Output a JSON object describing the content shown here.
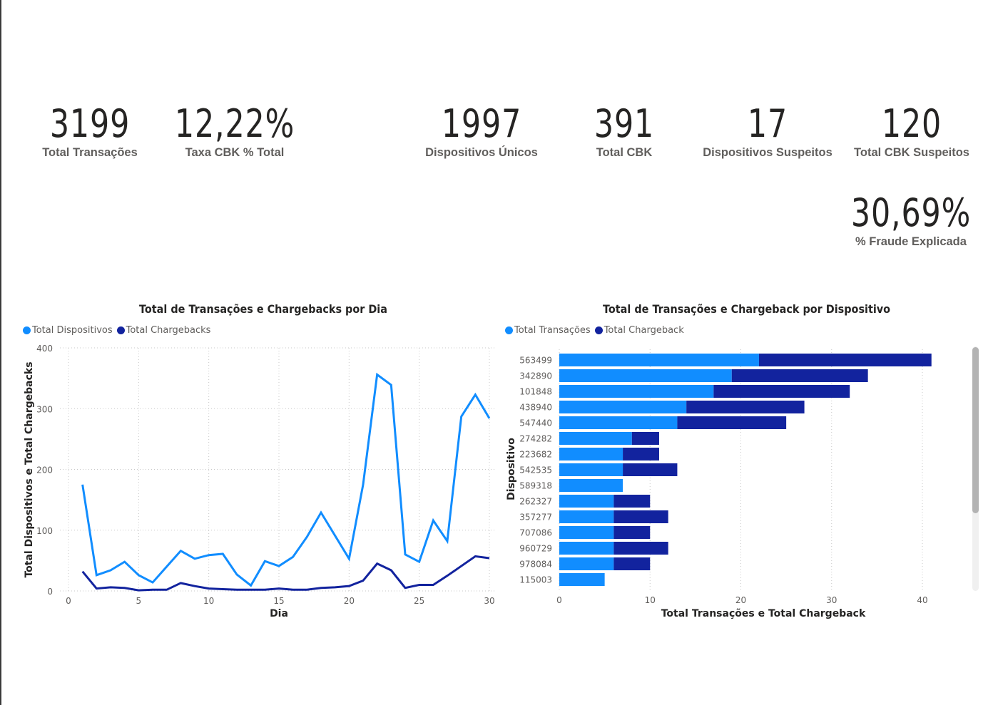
{
  "kpis": [
    {
      "value": "3199",
      "label": "Total Transações"
    },
    {
      "value": "12,22%",
      "label": "Taxa CBK % Total"
    },
    {
      "value": "1997",
      "label": "Dispositivos Únicos"
    },
    {
      "value": "391",
      "label": "Total CBK"
    },
    {
      "value": "17",
      "label": "Dispositivos Suspeitos"
    },
    {
      "value": "120",
      "label": "Total CBK Suspeitos"
    },
    {
      "value": "30,69%",
      "label": "% Fraude Explicada"
    }
  ],
  "colors": {
    "primary": "#118DFF",
    "secondary": "#12239E"
  },
  "chart_data": [
    {
      "type": "line",
      "title": "Total de Transações e Chargebacks por Dia",
      "xlabel": "Dia",
      "ylabel": "Total Dispositivos e Total Chargebacks",
      "legend_position": "top-left",
      "grid": true,
      "xlim": [
        0,
        30
      ],
      "ylim": [
        0,
        400
      ],
      "x_ticks": [
        "0",
        "5",
        "10",
        "15",
        "20",
        "25",
        "30"
      ],
      "y_ticks": [
        "0",
        "100",
        "200",
        "300",
        "400"
      ],
      "x": [
        1,
        2,
        3,
        4,
        5,
        6,
        7,
        8,
        9,
        10,
        11,
        12,
        13,
        14,
        15,
        16,
        17,
        18,
        19,
        20,
        21,
        22,
        23,
        24,
        25,
        26,
        27,
        28,
        29,
        30
      ],
      "series": [
        {
          "name": "Total Dispositivos",
          "color": "#118DFF",
          "values": [
            175,
            26,
            34,
            48,
            26,
            14,
            40,
            66,
            53,
            59,
            61,
            27,
            9,
            49,
            41,
            56,
            89,
            129,
            91,
            53,
            175,
            356,
            339,
            60,
            48,
            116,
            82,
            287,
            323,
            284
          ]
        },
        {
          "name": "Total Chargebacks",
          "color": "#12239E",
          "values": [
            32,
            4,
            6,
            5,
            1,
            2,
            2,
            13,
            8,
            4,
            3,
            2,
            2,
            2,
            4,
            2,
            2,
            5,
            6,
            8,
            17,
            45,
            34,
            5,
            10,
            10,
            25,
            41,
            57,
            54
          ]
        }
      ]
    },
    {
      "type": "bar",
      "orientation": "horizontal",
      "stacked": true,
      "title": "Total de Transações e Chargeback por Dispositivo",
      "xlabel": "Total Transações e Total Chargeback",
      "ylabel": "Dispositivo",
      "legend_position": "top-left",
      "grid": true,
      "xlim": [
        0,
        42
      ],
      "x_ticks": [
        "0",
        "10",
        "20",
        "30",
        "40"
      ],
      "categories": [
        "563499",
        "342890",
        "101848",
        "438940",
        "547440",
        "274282",
        "223682",
        "542535",
        "589318",
        "262327",
        "357277",
        "707086",
        "960729",
        "978084",
        "115003"
      ],
      "series": [
        {
          "name": "Total Transações",
          "color": "#118DFF",
          "values": [
            22,
            19,
            17,
            14,
            13,
            8,
            7,
            7,
            7,
            6,
            6,
            6,
            6,
            6,
            5
          ]
        },
        {
          "name": "Total Chargeback",
          "color": "#12239E",
          "values": [
            19,
            15,
            15,
            13,
            12,
            3,
            4,
            6,
            0,
            4,
            6,
            4,
            6,
            4,
            0
          ]
        }
      ],
      "scroll_position": 0,
      "scroll_visible_fraction": 0.68
    }
  ]
}
